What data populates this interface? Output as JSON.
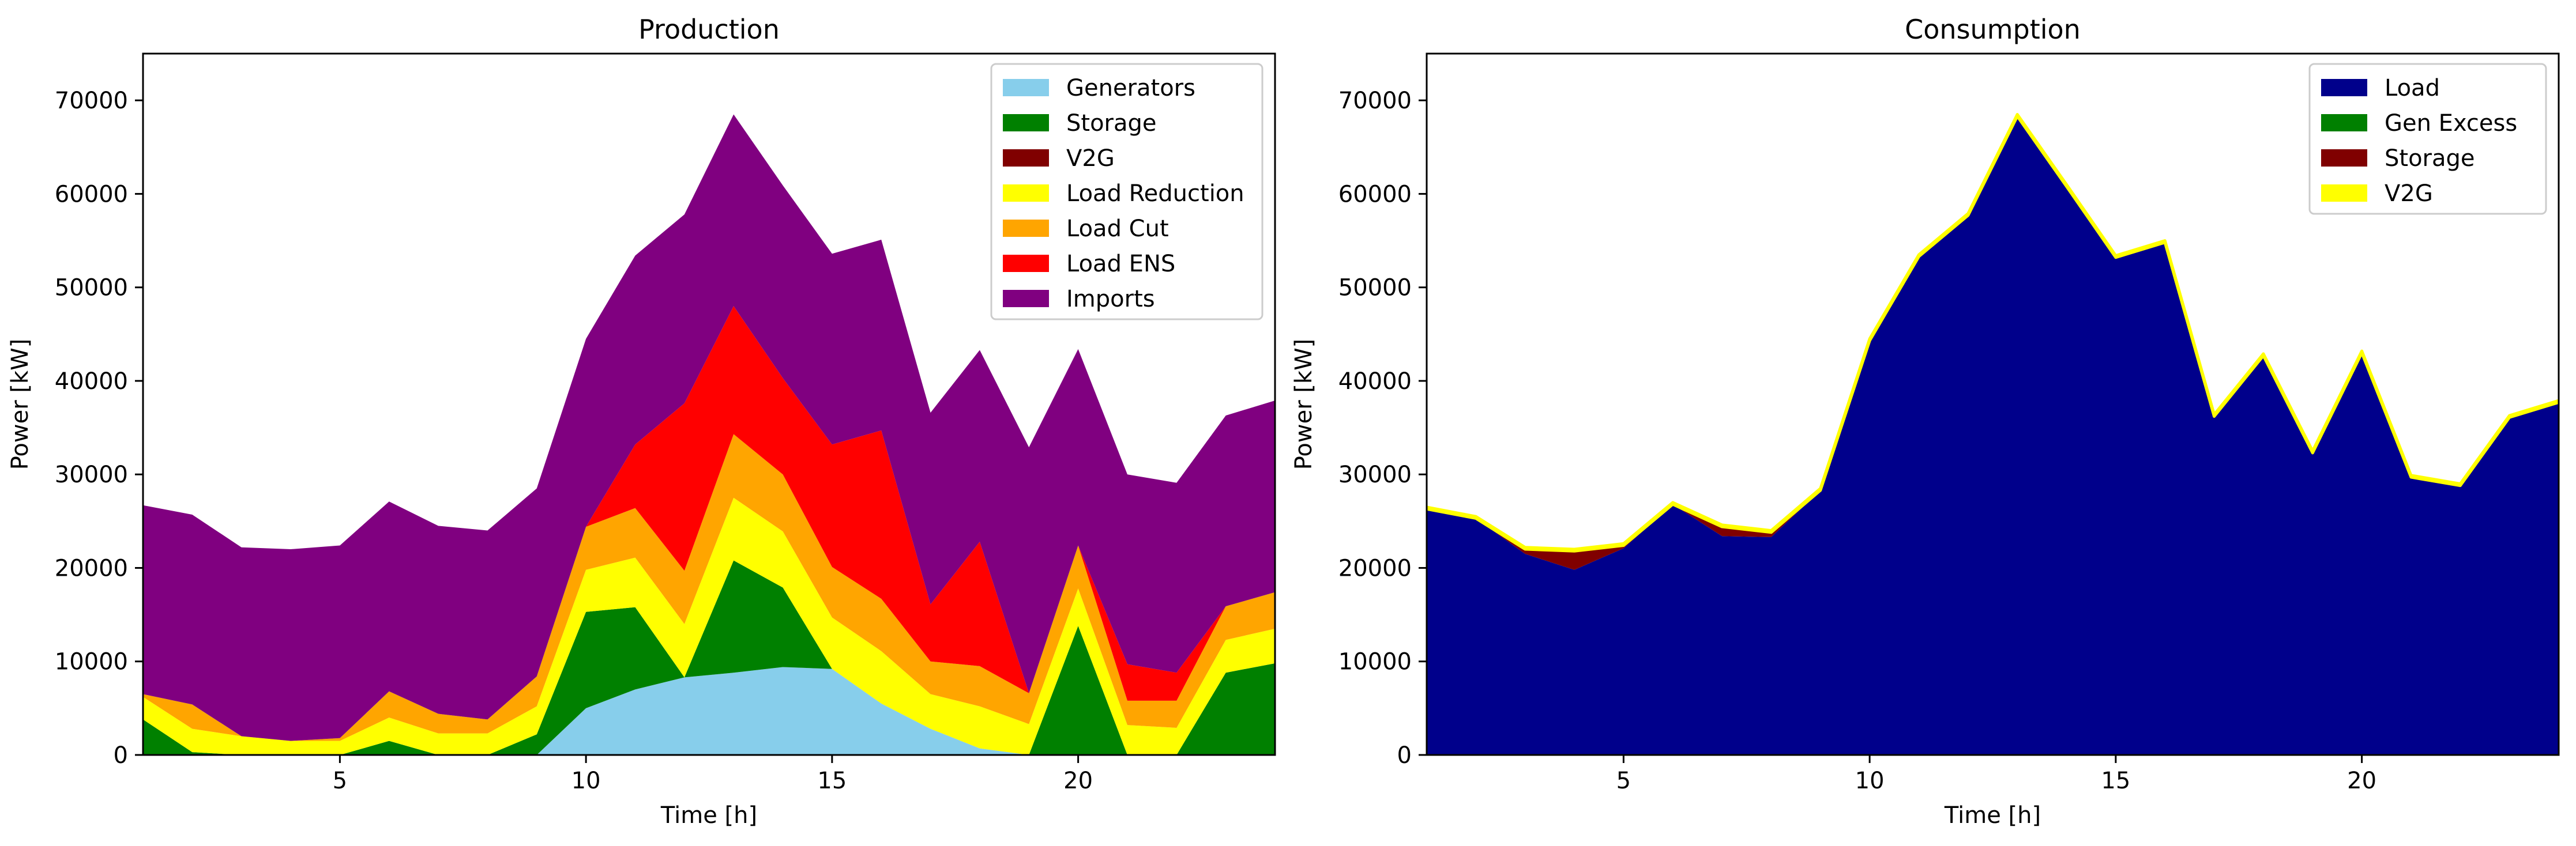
{
  "chart_data": [
    {
      "type": "area",
      "title": "Production",
      "xlabel": "Time [h]",
      "ylabel": "Power [kW]",
      "xlim": [
        1,
        24
      ],
      "ylim": [
        0,
        75000
      ],
      "xticks": [
        5,
        10,
        15,
        20
      ],
      "yticks": [
        0,
        10000,
        20000,
        30000,
        40000,
        50000,
        60000,
        70000
      ],
      "grid": false,
      "legend_position": "top-right",
      "stacked": true,
      "x": [
        1,
        2,
        3,
        4,
        5,
        6,
        7,
        8,
        9,
        10,
        11,
        12,
        13,
        14,
        15,
        16,
        17,
        18,
        19,
        20,
        21,
        22,
        23,
        24
      ],
      "series": [
        {
          "name": "Generators",
          "color": "#87ceeb",
          "values": [
            0,
            0,
            0,
            0,
            0,
            0,
            0,
            0,
            0,
            5000,
            7000,
            8300,
            8800,
            9400,
            9200,
            5500,
            2800,
            700,
            0,
            0,
            0,
            0,
            0,
            0
          ]
        },
        {
          "name": "Storage",
          "color": "#008000",
          "values": [
            3800,
            300,
            0,
            0,
            0,
            1500,
            0,
            0,
            2200,
            10300,
            8800,
            0,
            12000,
            8500,
            0,
            0,
            0,
            0,
            0,
            13800,
            0,
            0,
            8800,
            9800
          ]
        },
        {
          "name": "V2G",
          "color": "#800000",
          "values": [
            0,
            0,
            0,
            0,
            0,
            0,
            0,
            0,
            0,
            0,
            0,
            0,
            0,
            0,
            0,
            0,
            0,
            0,
            0,
            0,
            0,
            0,
            0,
            0
          ]
        },
        {
          "name": "Load Reduction",
          "color": "#ffff00",
          "values": [
            2400,
            2500,
            2000,
            1500,
            1500,
            2500,
            2300,
            2300,
            3000,
            4500,
            5300,
            5700,
            6700,
            6000,
            5500,
            5600,
            3700,
            4500,
            3300,
            4000,
            3200,
            2900,
            3500,
            3700
          ]
        },
        {
          "name": "Load Cut",
          "color": "#ffa500",
          "values": [
            300,
            2600,
            0,
            0,
            300,
            2800,
            2100,
            1500,
            3200,
            4600,
            5300,
            5700,
            6800,
            6100,
            5400,
            5600,
            3500,
            4300,
            3300,
            4600,
            2600,
            2900,
            3600,
            3900
          ]
        },
        {
          "name": "Load ENS",
          "color": "#ff0000",
          "values": [
            0,
            0,
            0,
            0,
            0,
            0,
            0,
            0,
            0,
            0,
            6800,
            17900,
            13700,
            10300,
            13100,
            18000,
            6100,
            13300,
            0,
            0,
            3900,
            3000,
            0,
            0
          ]
        },
        {
          "name": "Imports",
          "color": "#800080",
          "values": [
            20200,
            20300,
            20200,
            20500,
            20600,
            20300,
            20100,
            20200,
            20100,
            20100,
            20200,
            20200,
            20500,
            20600,
            20400,
            20400,
            20500,
            20500,
            26300,
            21000,
            20300,
            20300,
            20400,
            20500
          ]
        }
      ]
    },
    {
      "type": "area",
      "title": "Consumption",
      "xlabel": "Time [h]",
      "ylabel": "Power [kW]",
      "xlim": [
        1,
        24
      ],
      "ylim": [
        0,
        75000
      ],
      "xticks": [
        5,
        10,
        15,
        20
      ],
      "yticks": [
        0,
        10000,
        20000,
        30000,
        40000,
        50000,
        60000,
        70000
      ],
      "grid": false,
      "legend_position": "top-right",
      "stacked": true,
      "x": [
        1,
        2,
        3,
        4,
        5,
        6,
        7,
        8,
        9,
        10,
        11,
        12,
        13,
        14,
        15,
        16,
        17,
        18,
        19,
        20,
        21,
        22,
        23,
        24
      ],
      "series": [
        {
          "name": "Load",
          "color": "#00008b",
          "values": [
            26300,
            25300,
            21500,
            19800,
            22100,
            26800,
            23400,
            23300,
            28300,
            44300,
            53300,
            57700,
            68300,
            60800,
            53200,
            54800,
            36200,
            42700,
            32300,
            43000,
            29700,
            28800,
            36100,
            37700
          ]
        },
        {
          "name": "Gen Excess",
          "color": "#008000",
          "values": [
            0,
            0,
            0,
            0,
            0,
            0,
            0,
            0,
            0,
            0,
            0,
            0,
            0,
            0,
            0,
            0,
            0,
            0,
            0,
            0,
            0,
            0,
            0,
            0
          ]
        },
        {
          "name": "Storage",
          "color": "#800000",
          "values": [
            0,
            0,
            500,
            2000,
            300,
            0,
            1000,
            500,
            0,
            0,
            0,
            0,
            0,
            0,
            0,
            0,
            0,
            0,
            0,
            0,
            0,
            0,
            0,
            0
          ]
        },
        {
          "name": "V2G",
          "color": "#ffff00",
          "values": [
            200,
            200,
            200,
            200,
            200,
            200,
            200,
            200,
            200,
            200,
            200,
            200,
            200,
            200,
            200,
            200,
            200,
            200,
            200,
            200,
            200,
            200,
            200,
            200
          ]
        }
      ]
    }
  ]
}
